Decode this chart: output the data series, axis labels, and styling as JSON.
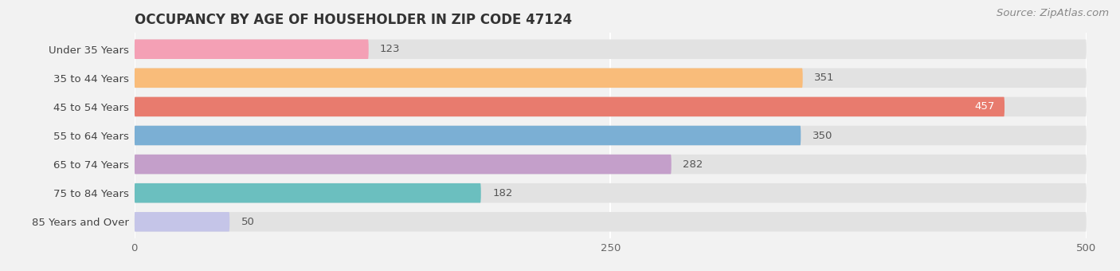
{
  "title": "OCCUPANCY BY AGE OF HOUSEHOLDER IN ZIP CODE 47124",
  "source": "Source: ZipAtlas.com",
  "categories": [
    "Under 35 Years",
    "35 to 44 Years",
    "45 to 54 Years",
    "55 to 64 Years",
    "65 to 74 Years",
    "75 to 84 Years",
    "85 Years and Over"
  ],
  "values": [
    123,
    351,
    457,
    350,
    282,
    182,
    50
  ],
  "bar_colors": [
    "#F4A0B5",
    "#F9BC7A",
    "#E87B6E",
    "#7BAFD4",
    "#C49FCA",
    "#6BBFBF",
    "#C5C5E8"
  ],
  "xlim": [
    0,
    500
  ],
  "xticks": [
    0,
    250,
    500
  ],
  "background_color": "#f2f2f2",
  "bar_background_color": "#e2e2e2",
  "title_fontsize": 12,
  "label_fontsize": 9.5,
  "value_fontsize": 9.5,
  "source_fontsize": 9.5,
  "bar_height": 0.68,
  "value_threshold_inside": 420
}
